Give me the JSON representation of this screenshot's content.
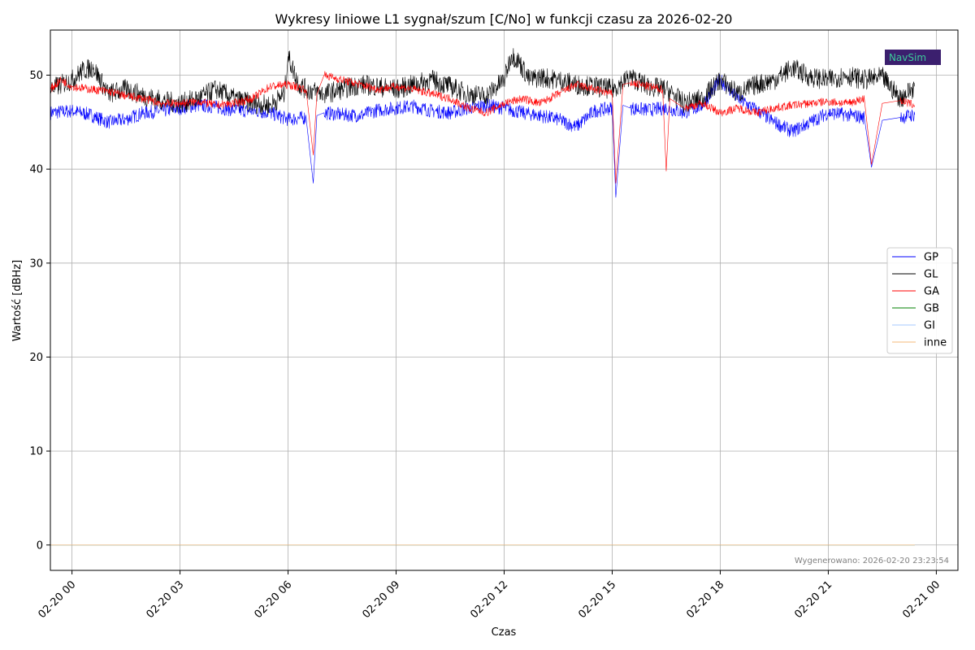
{
  "chart_data": {
    "type": "line",
    "title": "Wykresy liniowe L1 sygnał/szum [C/No] w funkcji czasu za 2026-02-20",
    "xlabel": "Czas",
    "ylabel": "Wartość [dBHz]",
    "x_unit": "hour of 2026-02-20",
    "xlim": [
      -0.6,
      24.6
    ],
    "ylim": [
      -2.7,
      54.8
    ],
    "x_ticks": [
      0,
      3,
      6,
      9,
      12,
      15,
      18,
      21,
      24
    ],
    "x_tick_labels": [
      "02-20 00",
      "02-20 03",
      "02-20 06",
      "02-20 09",
      "02-20 12",
      "02-20 15",
      "02-20 18",
      "02-20 21",
      "02-21 00"
    ],
    "y_ticks": [
      0,
      10,
      20,
      30,
      40,
      50
    ],
    "y_tick_labels": [
      "0",
      "10",
      "20",
      "30",
      "40",
      "50"
    ],
    "grid": true,
    "legend_position": "center-right",
    "footer": "Wygenerowano: 2026-02-20 23:23:54",
    "logo_text": "NavSim",
    "series": [
      {
        "name": "GP",
        "color": "#0000ff",
        "x": [
          -0.6,
          0.0,
          0.5,
          1.0,
          1.5,
          2.0,
          2.5,
          3.0,
          3.5,
          4.0,
          4.5,
          5.0,
          5.5,
          6.0,
          6.5,
          6.7,
          6.8,
          7.0,
          7.5,
          8.0,
          8.5,
          9.0,
          9.5,
          10.0,
          10.5,
          11.0,
          11.5,
          12.0,
          12.5,
          13.0,
          13.5,
          14.0,
          14.5,
          15.0,
          15.1,
          15.3,
          15.5,
          16.0,
          16.5,
          17.0,
          17.5,
          18.0,
          18.5,
          19.0,
          19.5,
          20.0,
          20.5,
          21.0,
          21.5,
          22.0,
          22.2,
          22.5,
          23.0,
          23.4
        ],
        "values": [
          46.0,
          46.2,
          45.8,
          45.0,
          45.3,
          46.0,
          46.2,
          46.5,
          46.8,
          46.6,
          46.3,
          46.2,
          46.0,
          45.3,
          45.5,
          38.5,
          45.7,
          46.0,
          45.8,
          45.7,
          46.3,
          46.5,
          46.7,
          46.2,
          46.0,
          46.5,
          46.8,
          46.5,
          46.0,
          45.7,
          45.3,
          44.5,
          46.2,
          46.5,
          37.0,
          46.8,
          46.5,
          46.3,
          46.5,
          46.0,
          46.8,
          49.5,
          47.5,
          46.3,
          45.0,
          44.0,
          45.0,
          46.0,
          45.8,
          45.5,
          40.2,
          45.2,
          45.5,
          45.8
        ]
      },
      {
        "name": "GL",
        "color": "#000000",
        "x": [
          -0.6,
          -0.3,
          0.0,
          0.3,
          0.6,
          1.0,
          1.5,
          2.0,
          2.5,
          3.0,
          3.5,
          4.0,
          4.5,
          5.0,
          5.5,
          5.9,
          6.0,
          6.3,
          6.5,
          7.0,
          7.5,
          8.0,
          8.5,
          9.0,
          9.5,
          10.0,
          10.5,
          11.0,
          11.5,
          12.0,
          12.2,
          12.4,
          12.7,
          13.0,
          13.5,
          14.0,
          14.5,
          15.0,
          15.5,
          16.0,
          16.5,
          17.0,
          17.5,
          18.0,
          18.5,
          19.0,
          19.5,
          20.0,
          20.5,
          21.0,
          21.5,
          22.0,
          22.5,
          23.0,
          23.4
        ],
        "values": [
          48.5,
          49.0,
          49.5,
          50.5,
          50.8,
          48.0,
          48.5,
          47.8,
          47.3,
          47.0,
          47.5,
          48.5,
          47.5,
          47.0,
          46.8,
          48.0,
          52.0,
          49.0,
          48.5,
          48.0,
          48.5,
          49.0,
          48.8,
          48.5,
          49.0,
          49.5,
          48.8,
          48.0,
          47.8,
          49.5,
          52.2,
          51.5,
          49.5,
          49.8,
          49.5,
          49.0,
          48.8,
          48.5,
          49.8,
          48.8,
          48.5,
          47.0,
          47.5,
          49.5,
          48.0,
          49.0,
          49.5,
          50.8,
          49.8,
          49.5,
          50.0,
          49.5,
          49.8,
          47.5,
          48.8
        ]
      },
      {
        "name": "GA",
        "color": "#ff0000",
        "x": [
          -0.6,
          -0.3,
          0.0,
          0.5,
          1.0,
          1.5,
          2.0,
          2.5,
          3.0,
          3.5,
          4.0,
          4.5,
          5.0,
          5.5,
          6.0,
          6.5,
          6.7,
          6.8,
          7.0,
          7.5,
          8.0,
          8.5,
          9.0,
          9.5,
          10.0,
          10.5,
          11.0,
          11.5,
          12.0,
          12.5,
          13.0,
          13.5,
          14.0,
          14.5,
          15.0,
          15.1,
          15.3,
          15.5,
          16.0,
          16.4,
          16.5,
          16.6,
          17.0,
          17.5,
          18.0,
          18.5,
          19.0,
          19.5,
          20.0,
          20.5,
          21.0,
          21.5,
          22.0,
          22.2,
          22.5,
          23.0,
          23.4
        ],
        "values": [
          48.5,
          49.5,
          48.8,
          48.5,
          48.3,
          47.8,
          47.5,
          47.0,
          47.0,
          47.2,
          46.8,
          47.0,
          47.5,
          48.8,
          49.0,
          48.5,
          41.5,
          48.0,
          50.0,
          49.5,
          49.0,
          48.5,
          48.8,
          48.5,
          48.0,
          47.5,
          46.5,
          46.0,
          47.0,
          47.5,
          47.0,
          48.0,
          49.0,
          48.5,
          48.0,
          38.5,
          49.0,
          49.2,
          48.8,
          48.5,
          39.8,
          47.5,
          46.5,
          47.0,
          46.0,
          46.5,
          46.0,
          46.5,
          46.8,
          47.0,
          47.2,
          47.0,
          47.5,
          40.5,
          47.0,
          47.3,
          46.8
        ]
      },
      {
        "name": "GB",
        "color": "#008000",
        "x": [
          -0.6,
          23.4
        ],
        "values": [
          0,
          0
        ]
      },
      {
        "name": "GI",
        "color": "#a6c8ff",
        "x": [
          -0.6,
          23.4
        ],
        "values": [
          0,
          0
        ]
      },
      {
        "name": "inne",
        "color": "#f5b97a",
        "x": [
          -0.6,
          23.4
        ],
        "values": [
          0,
          0
        ]
      }
    ]
  }
}
